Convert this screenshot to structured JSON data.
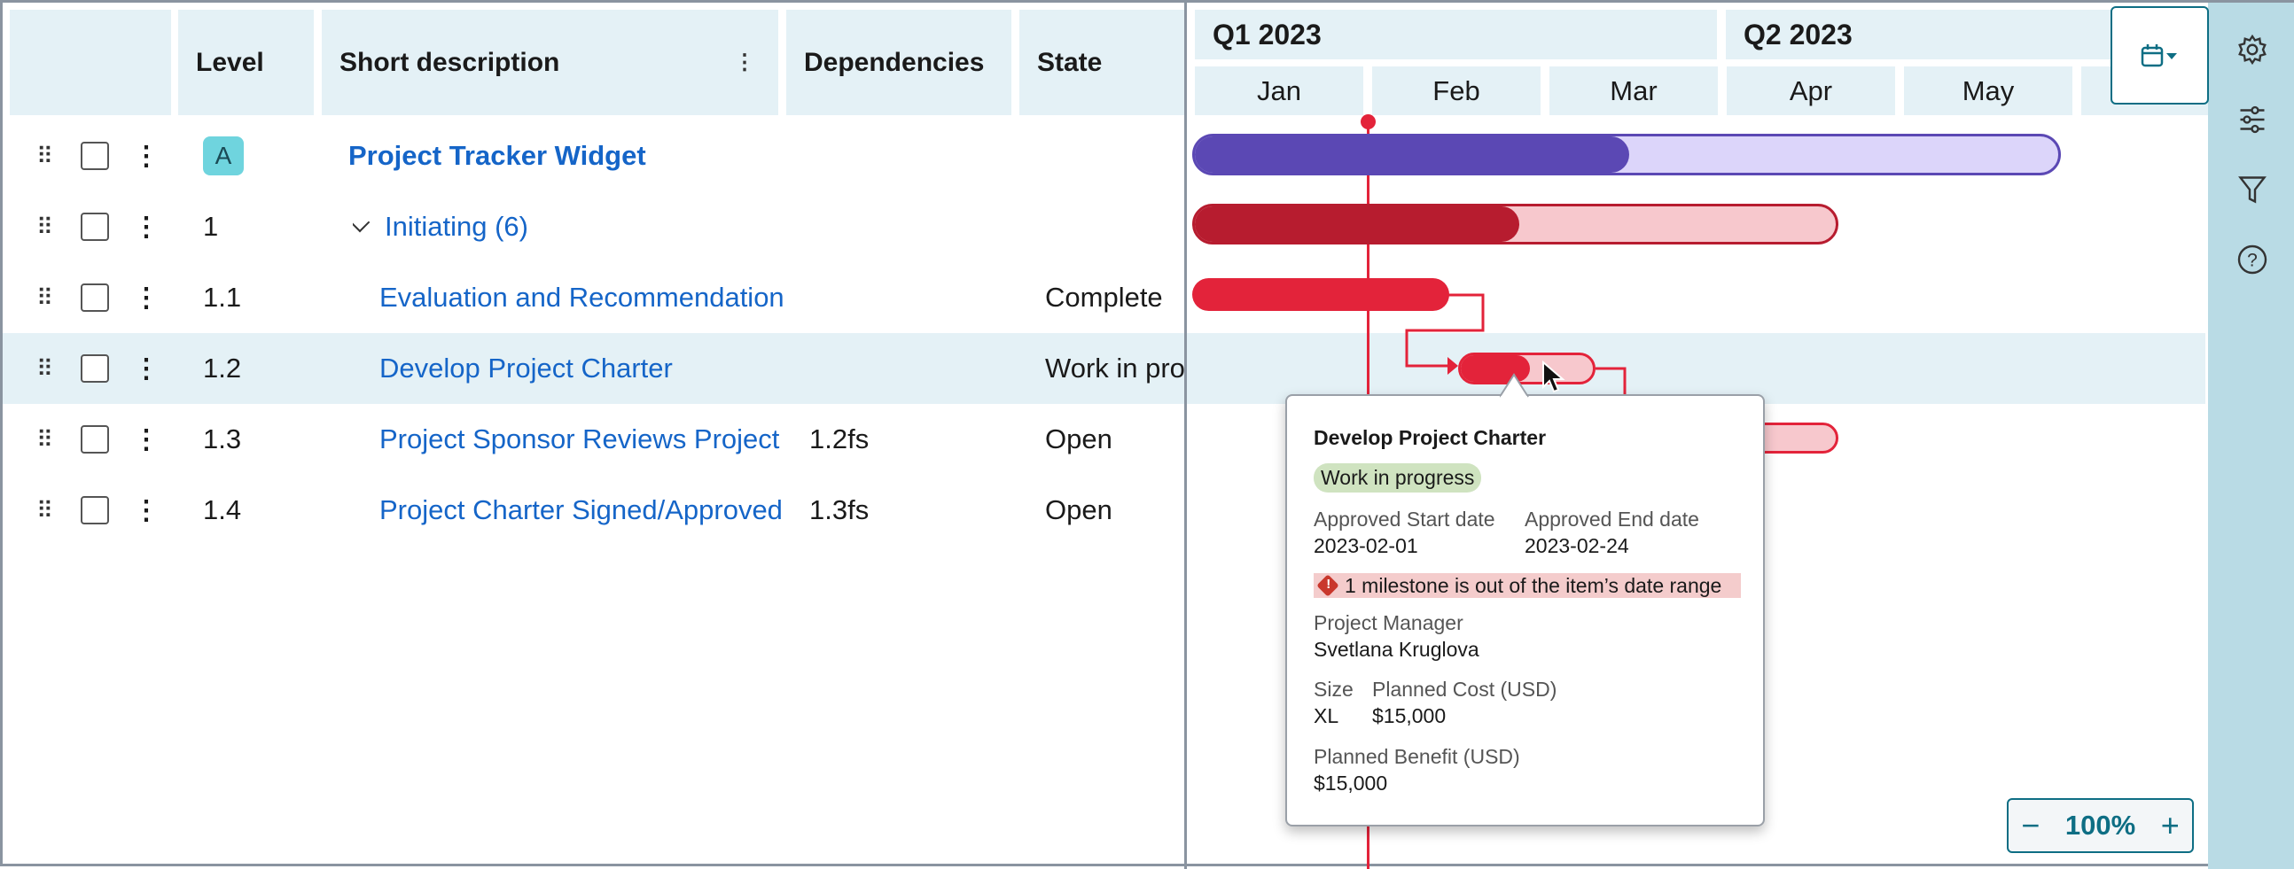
{
  "table": {
    "headers": {
      "level": "Level",
      "short_description": "Short description",
      "dependencies": "Dependencies",
      "state": "State"
    },
    "rows": [
      {
        "level": "A",
        "description": "Project Tracker Widget",
        "dependencies": "",
        "state": "",
        "type": "root"
      },
      {
        "level": "1",
        "description": "Initiating (6)",
        "dependencies": "",
        "state": "",
        "type": "group",
        "expanded": true
      },
      {
        "level": "1.1",
        "description": "Evaluation and Recommendation",
        "dependencies": "",
        "state": "Complete"
      },
      {
        "level": "1.2",
        "description": "Develop Project Charter",
        "dependencies": "",
        "state": "Work in progress",
        "highlighted": true
      },
      {
        "level": "1.3",
        "description": "Project Sponsor Reviews Project",
        "dependencies": "1.2fs",
        "state": "Open"
      },
      {
        "level": "1.4",
        "description": "Project Charter Signed/Approved",
        "dependencies": "1.3fs",
        "state": "Open"
      }
    ]
  },
  "gantt": {
    "quarters": [
      "Q1 2023",
      "Q2 2023"
    ],
    "months": [
      "Jan",
      "Feb",
      "Mar",
      "Apr",
      "May",
      ""
    ],
    "colors": {
      "root": "#5b48b4",
      "root_light": "#dcd5fa",
      "group": "#b71c2f",
      "task": "#e3233a",
      "task_light": "#f7c8cd",
      "today": "#e3233a"
    },
    "zoom": "100%"
  },
  "tooltip": {
    "title": "Develop Project Charter",
    "status": "Work in progress",
    "start_label": "Approved Start date",
    "start_value": "2023-02-01",
    "end_label": "Approved End date",
    "end_value": "2023-02-24",
    "warning": "1 milestone is out of the item’s date range",
    "pm_label": "Project Manager",
    "pm_value": "Svetlana Kruglova",
    "size_label": "Size",
    "size_value": "XL",
    "cost_label": "Planned Cost (USD)",
    "cost_value": "$15,000",
    "benefit_label": "Planned Benefit (USD)",
    "benefit_value": "$15,000"
  },
  "icons": {
    "calendar": "calendar-icon",
    "settings": "gear-icon",
    "adjust": "sliders-icon",
    "filter": "filter-icon",
    "help": "help-icon"
  }
}
